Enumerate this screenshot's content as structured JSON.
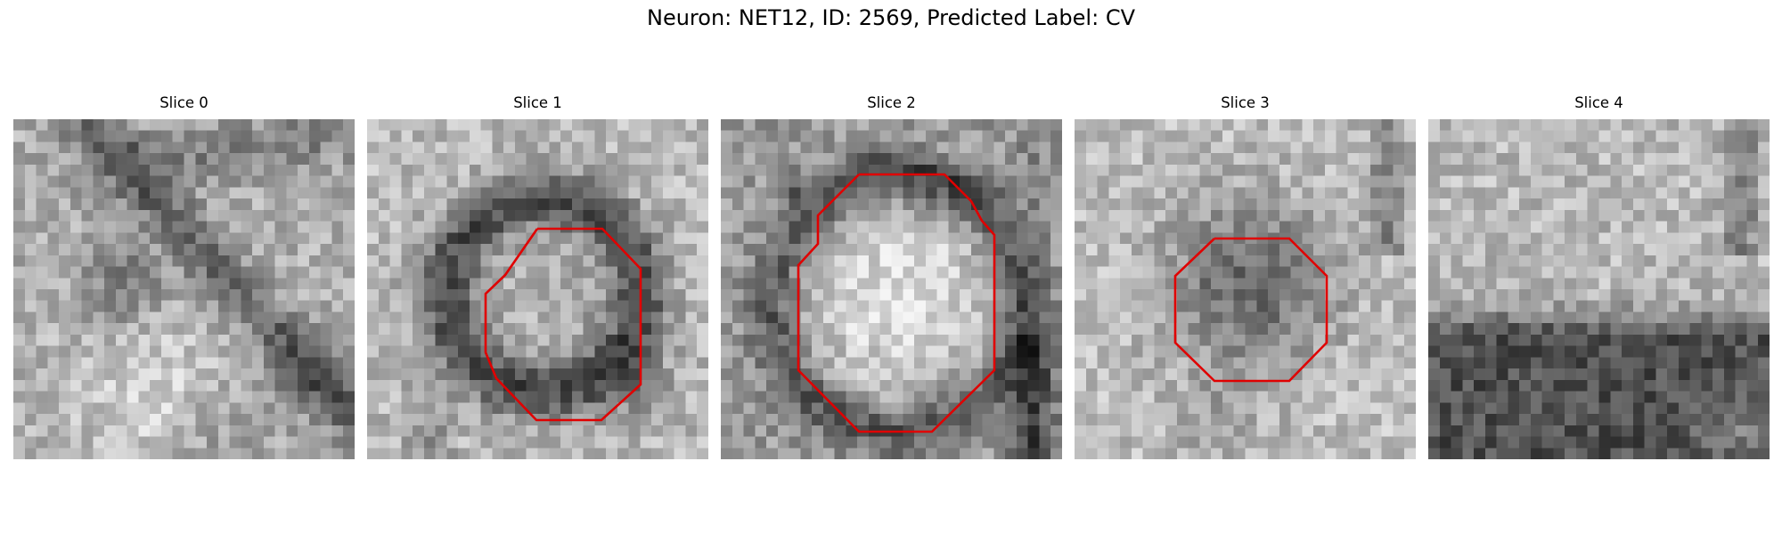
{
  "figure": {
    "title": "Neuron: NET12, ID: 2569, Predicted Label: CV",
    "outline_color": "#e00000"
  },
  "slices": [
    {
      "title": "Slice 0",
      "has_outline": false
    },
    {
      "title": "Slice 1",
      "has_outline": true
    },
    {
      "title": "Slice 2",
      "has_outline": true
    },
    {
      "title": "Slice 3",
      "has_outline": true
    },
    {
      "title": "Slice 4",
      "has_outline": false
    }
  ]
}
